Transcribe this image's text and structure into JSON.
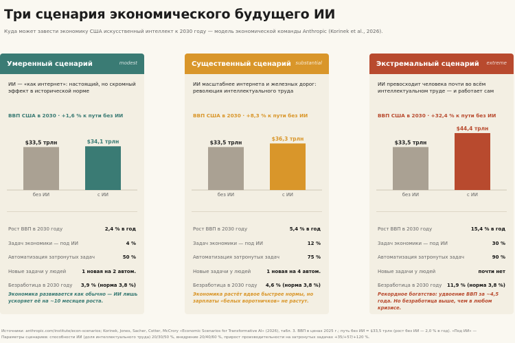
{
  "title": "Три сценария экономического будущего ИИ",
  "subtitle": "Куда может завести экономику США искусственный интеллект к 2030 году — модель экономической команды Anthropic (Korinek et al., 2026).",
  "colors": {
    "background": "#faf8f1",
    "baseline_bar": "#aaa193",
    "moderate": "#3a7b74",
    "substantial": "#d9962a",
    "extreme": "#b84a2e"
  },
  "cards": [
    {
      "title": "Умеренный сценарий",
      "tag": "modest",
      "description": "ИИ — «как интернет»: настоящий, но скромный эффект в исторической норме",
      "gdp_line": "ВВП США в 2030 · +1,6 % к пути без ИИ",
      "stats": [
        {
          "label": "Рост ВВП в 2030 году",
          "value": "2,4 % в год"
        },
        {
          "label": "Задач экономики — под ИИ",
          "value": "4 %"
        },
        {
          "label": "Автоматизация затронутых задач",
          "value": "50 %"
        },
        {
          "label": "Новые задачи у людей",
          "value": "1 новая на 2 автом."
        },
        {
          "label": "Безработица в 2030 году",
          "value": "3,9 % (норма 3,8 %)"
        }
      ],
      "note": "Экономика развивается как обычно — ИИ лишь ускоряет её на ~10 месяцев роста."
    },
    {
      "title": "Существенный сценарий",
      "tag": "substantial",
      "description": "ИИ масштабнее интернета и железных дорог: революция интеллектуального труда",
      "gdp_line": "ВВП США в 2030 · +8,3 % к пути без ИИ",
      "stats": [
        {
          "label": "Рост ВВП в 2030 году",
          "value": "5,4 % в год"
        },
        {
          "label": "Задач экономики — под ИИ",
          "value": "12 %"
        },
        {
          "label": "Автоматизация затронутых задач",
          "value": "75 %"
        },
        {
          "label": "Новые задачи у людей",
          "value": "1 новая на 4 автом."
        },
        {
          "label": "Безработица в 2030 году",
          "value": "4,6 % (норма 3,8 %)"
        }
      ],
      "note": "Экономика растёт вдвое быстрее нормы, но зарплаты «белых воротничков» не растут."
    },
    {
      "title": "Экстремальный сценарий",
      "tag": "extreme",
      "description": "ИИ превосходит человека почти во всём интеллектуальном труде — и работает сам",
      "gdp_line": "ВВП США в 2030 · +32,4 % к пути без ИИ",
      "stats": [
        {
          "label": "Рост ВВП в 2030 году",
          "value": "15,4 % в год"
        },
        {
          "label": "Задач экономики — под ИИ",
          "value": "30 %"
        },
        {
          "label": "Автоматизация затронутых задач",
          "value": "90 %"
        },
        {
          "label": "Новые задачи у людей",
          "value": "почти нет"
        },
        {
          "label": "Безработица в 2030 году",
          "value": "11,9 % (норма 3,8 %)"
        }
      ],
      "note": "Рекордное богатство: удвоение ВВП за ~4,5 года. Но безработица выше, чем в любом кризисе."
    }
  ],
  "chart_data": [
    {
      "type": "bar",
      "categories": [
        "без ИИ",
        "с ИИ"
      ],
      "values": [
        33.5,
        34.1
      ],
      "value_labels": [
        "$33,5 трлн",
        "$34,1 трлн"
      ],
      "ylim": [
        0,
        46
      ]
    },
    {
      "type": "bar",
      "categories": [
        "без ИИ",
        "с ИИ"
      ],
      "values": [
        33.5,
        36.3
      ],
      "value_labels": [
        "$33,5 трлн",
        "$36,3 трлн"
      ],
      "ylim": [
        0,
        46
      ]
    },
    {
      "type": "bar",
      "categories": [
        "без ИИ",
        "с ИИ"
      ],
      "values": [
        33.5,
        44.4
      ],
      "value_labels": [
        "$33,5 трлн",
        "$44,4 трлн"
      ],
      "ylim": [
        0,
        46
      ]
    }
  ],
  "footer": {
    "line1": "Источники: anthropic.com/institute/econ-scenarios; Korinek, Jones, Sacher, Cotter, McCrory «Economic Scenarios for Transformative AI» (2026), табл. 3.  ВВП в ценах 2025 г.; путь без ИИ = $33,5 трлн (рост без ИИ — 2,0 % в год).  «Под ИИ» —",
    "line2": "Параметры сценариев: способности ИИ (доля интеллектуального труда) 20/30/50 %, внедрение 20/40/60 %, прирост производительности на затронутых задачах +35/+57/+120 %."
  }
}
